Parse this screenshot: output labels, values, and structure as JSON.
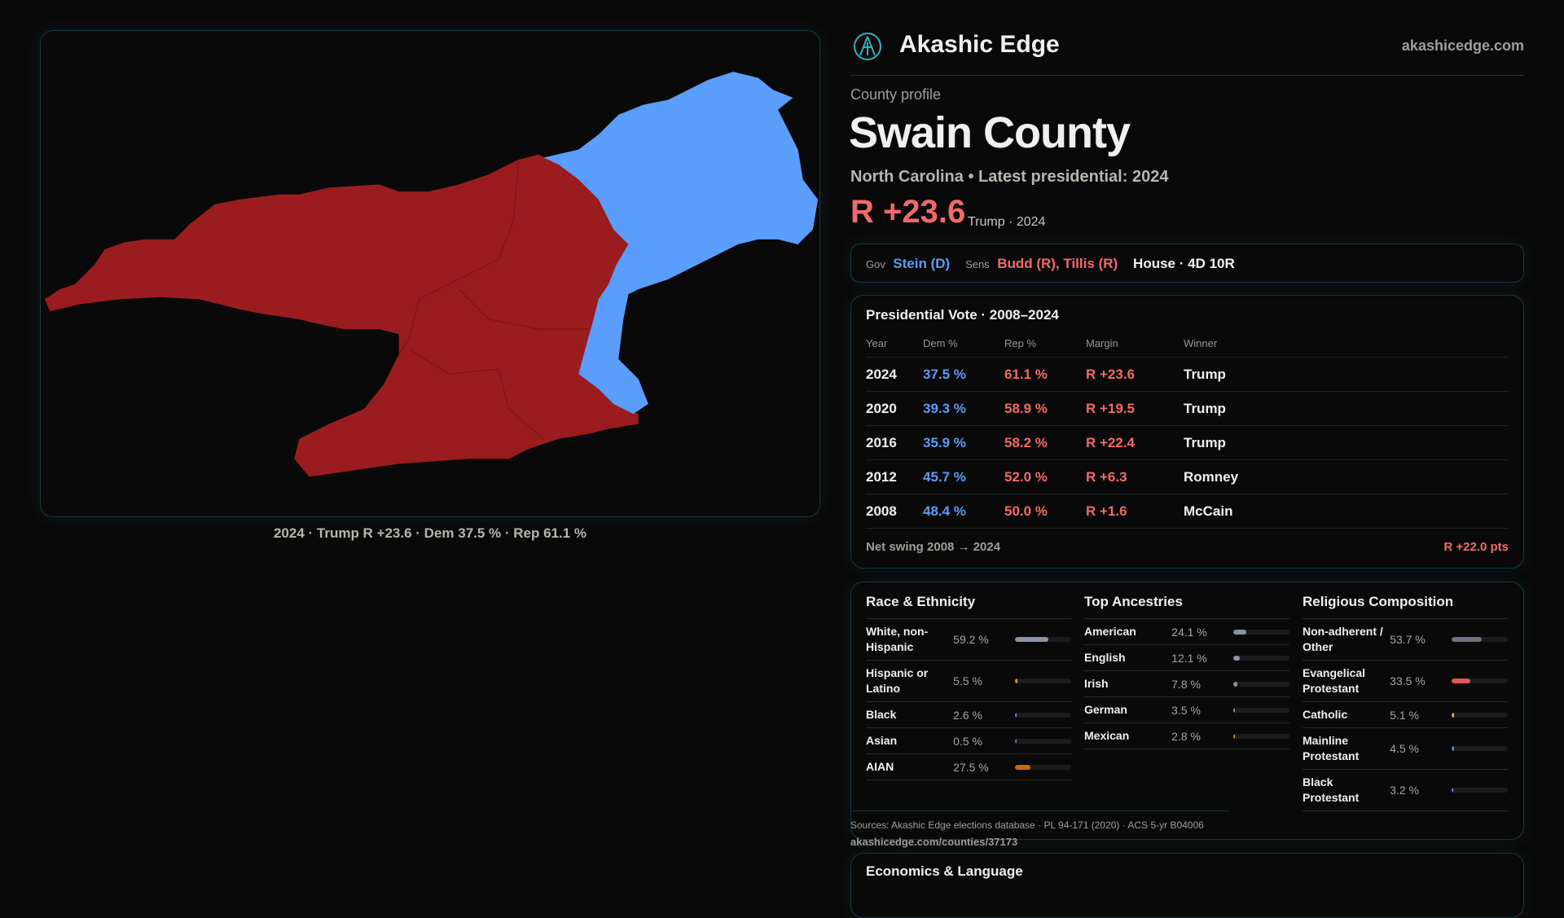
{
  "brand": {
    "name": "Akashic Edge",
    "domain": "akashicedge.com"
  },
  "profile": {
    "kicker": "County profile",
    "title": "Swain County",
    "subtitle": "North Carolina • Latest presidential: 2024",
    "margin": "R +23.6",
    "margin_note": "Trump · 2024"
  },
  "officials": {
    "gov_label": "Gov",
    "gov": "Stein (D)",
    "sens_label": "Sens",
    "sens": "Budd (R), Tillis (R)",
    "house": "House · 4D 10R"
  },
  "map": {
    "caption": "2024 · Trump R +23.6 · Dem 37.5 % · Rep 61.1 %",
    "colors": {
      "rep": "#9b1c1f",
      "dem": "#5b9dfa"
    }
  },
  "presidential": {
    "title": "Presidential Vote · 2008–2024",
    "headers": [
      "Year",
      "Dem %",
      "Rep %",
      "Margin",
      "Winner"
    ],
    "rows": [
      [
        "2024",
        "37.5 %",
        "61.1 %",
        "R +23.6",
        "Trump"
      ],
      [
        "2020",
        "39.3 %",
        "58.9 %",
        "R +19.5",
        "Trump"
      ],
      [
        "2016",
        "35.9 %",
        "58.2 %",
        "R +22.4",
        "Trump"
      ],
      [
        "2012",
        "45.7 %",
        "52.0 %",
        "R +6.3",
        "Romney"
      ],
      [
        "2008",
        "48.4 %",
        "50.0 %",
        "R +1.6",
        "McCain"
      ]
    ],
    "swing_label": "Net swing 2008 → 2024",
    "swing_value": "R +22.0 pts"
  },
  "demographics": [
    {
      "title": "Race & Ethnicity",
      "items": [
        {
          "label": "White, non-Hispanic",
          "value": "59.2 %",
          "pct": 59.2,
          "color": "#8a94a6"
        },
        {
          "label": "Hispanic or Latino",
          "value": "5.5 %",
          "pct": 5.5,
          "color": "#d99a1a"
        },
        {
          "label": "Black",
          "value": "2.6 %",
          "pct": 2.6,
          "color": "#8a6cf0"
        },
        {
          "label": "Asian",
          "value": "0.5 %",
          "pct": 0.5,
          "color": "#4a8ad8"
        },
        {
          "label": "AIAN",
          "value": "27.5 %",
          "pct": 27.5,
          "color": "#c8680a"
        }
      ]
    },
    {
      "title": "Top Ancestries",
      "items": [
        {
          "label": "American",
          "value": "24.1 %",
          "pct": 24.1,
          "color": "#8a94a6"
        },
        {
          "label": "English",
          "value": "12.1 %",
          "pct": 12.1,
          "color": "#8a94a6"
        },
        {
          "label": "Irish",
          "value": "7.8 %",
          "pct": 7.8,
          "color": "#8a94a6"
        },
        {
          "label": "German",
          "value": "3.5 %",
          "pct": 3.5,
          "color": "#8a94a6"
        },
        {
          "label": "Mexican",
          "value": "2.8 %",
          "pct": 2.8,
          "color": "#d99a1a"
        }
      ]
    },
    {
      "title": "Religious Composition",
      "items": [
        {
          "label": "Non-adherent / Other",
          "value": "53.7 %",
          "pct": 53.7,
          "color": "#6b7280"
        },
        {
          "label": "Evangelical Protestant",
          "value": "33.5 %",
          "pct": 33.5,
          "color": "#e0575c"
        },
        {
          "label": "Catholic",
          "value": "5.1 %",
          "pct": 5.1,
          "color": "#e0b020"
        },
        {
          "label": "Mainline Protestant",
          "value": "4.5 %",
          "pct": 4.5,
          "color": "#4a8ad8"
        },
        {
          "label": "Black Protestant",
          "value": "3.2 %",
          "pct": 3.2,
          "color": "#8a6cf0"
        }
      ]
    }
  ],
  "sources": "Sources: Akashic Edge elections database · PL 94-171 (2020) · ACS 5-yr B04006",
  "url": "akashicedge.com/counties/37173",
  "econ_title": "Economics & Language"
}
